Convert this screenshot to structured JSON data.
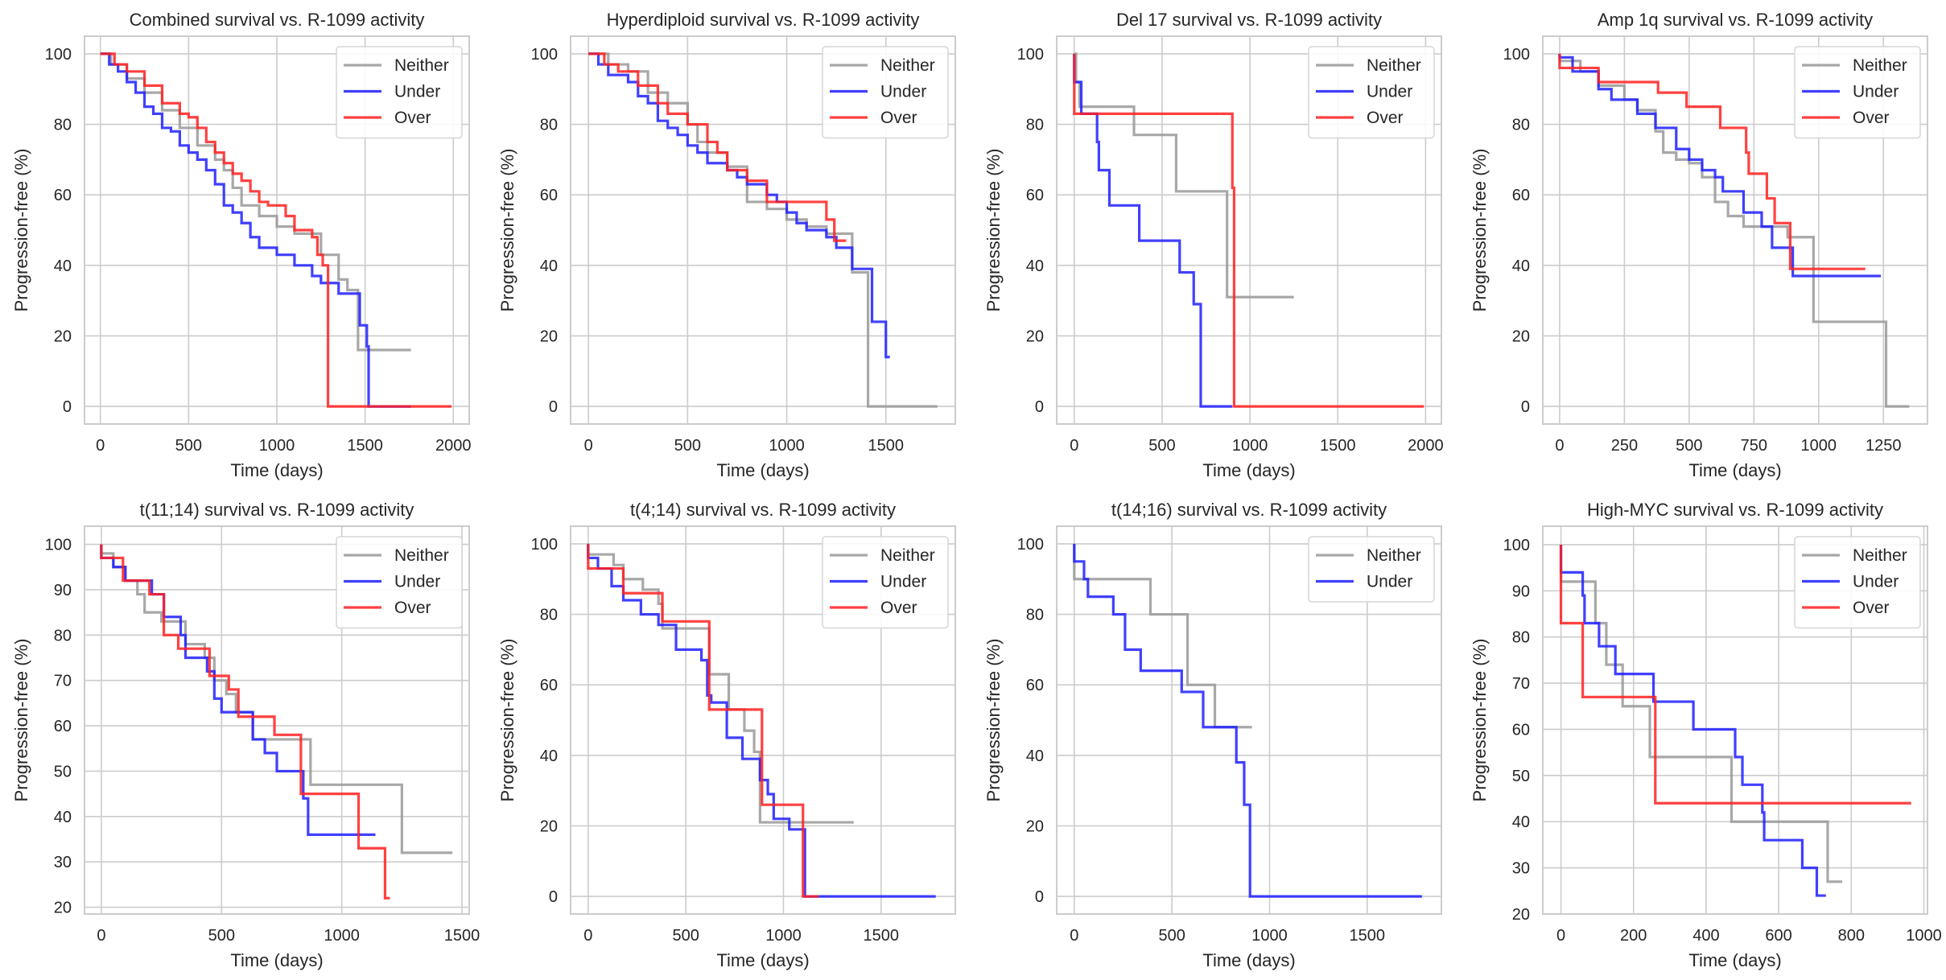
{
  "chart_data": [
    {
      "type": "line",
      "title": "Combined survival vs. R-1099 activity",
      "xlabel": "Time (days)",
      "ylabel": "Progression-free (%)",
      "xlim": [
        -90,
        2090
      ],
      "ylim": [
        -5,
        105
      ],
      "xticks": [
        0,
        500,
        1000,
        1500,
        2000
      ],
      "yticks": [
        0,
        20,
        40,
        60,
        80,
        100
      ],
      "grid": true,
      "legend_position": "top-right",
      "series": [
        {
          "name": "Neither",
          "color": "#999999",
          "x": [
            0,
            60,
            150,
            250,
            350,
            450,
            550,
            650,
            700,
            750,
            800,
            900,
            1000,
            1100,
            1200,
            1250,
            1300,
            1350,
            1400,
            1460,
            1760
          ],
          "y": [
            100,
            97,
            93,
            89,
            84,
            79,
            74,
            70,
            67,
            62,
            57,
            54,
            51,
            49,
            49,
            43,
            43,
            36,
            33,
            16,
            16
          ]
        },
        {
          "name": "Under",
          "color": "#1f1fff",
          "x": [
            0,
            50,
            100,
            150,
            200,
            250,
            300,
            350,
            400,
            450,
            500,
            550,
            600,
            650,
            700,
            750,
            800,
            850,
            900,
            1000,
            1100,
            1200,
            1250,
            1300,
            1350,
            1420,
            1470,
            1510,
            1520,
            1760
          ],
          "y": [
            100,
            97,
            95,
            92,
            89,
            85,
            83,
            79,
            78,
            74,
            72,
            70,
            67,
            63,
            57,
            55,
            52,
            48,
            45,
            43,
            40,
            37,
            35,
            35,
            32,
            32,
            23,
            17,
            0,
            0
          ]
        },
        {
          "name": "Over",
          "color": "#ff2020",
          "x": [
            0,
            80,
            150,
            250,
            350,
            450,
            500,
            550,
            600,
            650,
            700,
            750,
            800,
            850,
            900,
            950,
            1050,
            1100,
            1200,
            1230,
            1260,
            1290,
            1990
          ],
          "y": [
            100,
            97,
            95,
            91,
            86,
            83,
            82,
            79,
            75,
            72,
            69,
            66,
            64,
            61,
            58,
            57,
            54,
            50,
            48,
            43,
            40,
            0,
            0
          ]
        }
      ]
    },
    {
      "type": "line",
      "title": "Hyperdiploid survival vs. R-1099 activity",
      "xlabel": "Time (days)",
      "ylabel": "Progression-free (%)",
      "xlim": [
        -90,
        1850
      ],
      "ylim": [
        -5,
        105
      ],
      "xticks": [
        0,
        500,
        1000,
        1500
      ],
      "yticks": [
        0,
        20,
        40,
        60,
        80,
        100
      ],
      "grid": true,
      "legend_position": "top-right",
      "series": [
        {
          "name": "Neither",
          "color": "#999999",
          "x": [
            0,
            100,
            200,
            300,
            400,
            500,
            550,
            600,
            700,
            800,
            900,
            1000,
            1100,
            1200,
            1330,
            1400,
            1410,
            1760
          ],
          "y": [
            100,
            97,
            95,
            89,
            86,
            80,
            75,
            72,
            68,
            58,
            56,
            53,
            51,
            49,
            38,
            38,
            0,
            0
          ]
        },
        {
          "name": "Under",
          "color": "#1f1fff",
          "x": [
            0,
            50,
            100,
            200,
            250,
            300,
            350,
            400,
            450,
            500,
            550,
            600,
            700,
            750,
            800,
            900,
            950,
            1000,
            1050,
            1100,
            1200,
            1250,
            1330,
            1430,
            1500,
            1520
          ],
          "y": [
            100,
            97,
            94,
            92,
            88,
            86,
            81,
            79,
            77,
            74,
            72,
            69,
            67,
            65,
            63,
            60,
            58,
            55,
            52,
            50,
            48,
            45,
            39,
            24,
            14,
            14
          ]
        },
        {
          "name": "Over",
          "color": "#ff2020",
          "x": [
            0,
            80,
            150,
            250,
            350,
            400,
            500,
            600,
            650,
            700,
            800,
            900,
            1200,
            1240,
            1300
          ],
          "y": [
            100,
            97,
            95,
            91,
            86,
            83,
            80,
            75,
            72,
            67,
            64,
            58,
            53,
            47,
            47
          ]
        }
      ]
    },
    {
      "type": "line",
      "title": "Del 17 survival vs. R-1099 activity",
      "xlabel": "Time (days)",
      "ylabel": "Progression-free (%)",
      "xlim": [
        -100,
        2090
      ],
      "ylim": [
        -5,
        105
      ],
      "xticks": [
        0,
        500,
        1000,
        1500,
        2000
      ],
      "yticks": [
        0,
        20,
        40,
        60,
        80,
        100
      ],
      "grid": true,
      "legend_position": "top-right",
      "series": [
        {
          "name": "Neither",
          "color": "#999999",
          "x": [
            0,
            10,
            30,
            340,
            580,
            870,
            1250
          ],
          "y": [
            100,
            92,
            85,
            77,
            61,
            31,
            31
          ]
        },
        {
          "name": "Under",
          "color": "#1f1fff",
          "x": [
            0,
            40,
            130,
            140,
            200,
            370,
            600,
            680,
            720,
            900
          ],
          "y": [
            92,
            83,
            75,
            67,
            57,
            47,
            38,
            29,
            0,
            0
          ]
        },
        {
          "name": "Over",
          "color": "#ff2020",
          "x": [
            0,
            900,
            910,
            1990
          ],
          "y": [
            83,
            62,
            0,
            0
          ]
        }
      ]
    },
    {
      "type": "line",
      "title": "Amp 1q survival vs. R-1099 activity",
      "xlabel": "Time (days)",
      "ylabel": "Progression-free (%)",
      "xlim": [
        -65,
        1420
      ],
      "ylim": [
        -5,
        105
      ],
      "xticks": [
        0,
        250,
        500,
        750,
        1000,
        1250
      ],
      "yticks": [
        0,
        20,
        40,
        60,
        80,
        100
      ],
      "grid": true,
      "legend_position": "top-right",
      "series": [
        {
          "name": "Neither",
          "color": "#999999",
          "x": [
            0,
            80,
            150,
            250,
            300,
            370,
            400,
            450,
            500,
            550,
            600,
            650,
            710,
            880,
            980,
            1260,
            1350
          ],
          "y": [
            98,
            95,
            91,
            87,
            84,
            78,
            72,
            70,
            69,
            65,
            58,
            54,
            51,
            48,
            24,
            0,
            0
          ]
        },
        {
          "name": "Under",
          "color": "#1f1fff",
          "x": [
            0,
            50,
            150,
            200,
            300,
            370,
            450,
            500,
            550,
            600,
            630,
            710,
            780,
            820,
            900,
            1240
          ],
          "y": [
            99,
            95,
            90,
            87,
            83,
            79,
            73,
            70,
            67,
            65,
            61,
            55,
            51,
            45,
            37,
            37
          ]
        },
        {
          "name": "Over",
          "color": "#ff2020",
          "x": [
            0,
            150,
            380,
            490,
            620,
            720,
            730,
            800,
            830,
            890,
            1180
          ],
          "y": [
            96,
            92,
            89,
            85,
            79,
            72,
            66,
            59,
            52,
            39,
            39
          ]
        }
      ]
    },
    {
      "type": "line",
      "title": "t(11;14) survival vs. R-1099 activity",
      "xlabel": "Time (days)",
      "ylabel": "Progression-free (%)",
      "xlim": [
        -70,
        1530
      ],
      "ylim": [
        18.5,
        104
      ],
      "xticks": [
        0,
        500,
        1000,
        1500
      ],
      "yticks": [
        20,
        30,
        40,
        50,
        60,
        70,
        80,
        90,
        100
      ],
      "grid": true,
      "legend_position": "top-right",
      "series": [
        {
          "name": "Neither",
          "color": "#999999",
          "x": [
            0,
            50,
            100,
            150,
            180,
            250,
            350,
            430,
            470,
            520,
            560,
            630,
            870,
            1250,
            1460
          ],
          "y": [
            98,
            95,
            92,
            89,
            85,
            83,
            78,
            75,
            70,
            67,
            63,
            57,
            47,
            32,
            32
          ]
        },
        {
          "name": "Under",
          "color": "#1f1fff",
          "x": [
            0,
            50,
            100,
            210,
            260,
            330,
            350,
            440,
            470,
            500,
            630,
            680,
            730,
            840,
            860,
            1140
          ],
          "y": [
            97,
            95,
            92,
            89,
            84,
            80,
            75,
            72,
            66,
            63,
            57,
            54,
            50,
            44,
            36,
            36
          ]
        },
        {
          "name": "Over",
          "color": "#ff2020",
          "x": [
            0,
            90,
            200,
            260,
            320,
            450,
            530,
            570,
            720,
            830,
            1070,
            1180,
            1200
          ],
          "y": [
            97,
            92,
            89,
            80,
            77,
            71,
            68,
            62,
            58,
            45,
            33,
            22,
            22
          ]
        }
      ]
    },
    {
      "type": "line",
      "title": "t(4;14) survival vs. R-1099 activity",
      "xlabel": "Time (days)",
      "ylabel": "Progression-free (%)",
      "xlim": [
        -90,
        1880
      ],
      "ylim": [
        -5,
        105
      ],
      "xticks": [
        0,
        500,
        1000,
        1500
      ],
      "yticks": [
        0,
        20,
        40,
        60,
        80,
        100
      ],
      "grid": true,
      "legend_position": "top-right",
      "series": [
        {
          "name": "Neither",
          "color": "#999999",
          "x": [
            0,
            130,
            180,
            280,
            360,
            380,
            620,
            720,
            800,
            850,
            880,
            1360
          ],
          "y": [
            97,
            94,
            90,
            87,
            83,
            76,
            63,
            53,
            47,
            41,
            21,
            21
          ]
        },
        {
          "name": "Under",
          "color": "#1f1fff",
          "x": [
            0,
            50,
            120,
            180,
            270,
            360,
            450,
            580,
            610,
            630,
            710,
            790,
            880,
            920,
            950,
            1030,
            1110,
            1780
          ],
          "y": [
            96,
            93,
            88,
            84,
            80,
            77,
            70,
            67,
            57,
            55,
            45,
            39,
            33,
            29,
            22,
            19,
            0,
            0
          ]
        },
        {
          "name": "Over",
          "color": "#ff2020",
          "x": [
            0,
            180,
            380,
            620,
            890,
            1100,
            1180
          ],
          "y": [
            93,
            86,
            78,
            53,
            26,
            0,
            0
          ]
        }
      ]
    },
    {
      "type": "line",
      "title": "t(14;16) survival vs. R-1099 activity",
      "xlabel": "Time (days)",
      "ylabel": "Progression-free (%)",
      "xlim": [
        -90,
        1880
      ],
      "ylim": [
        -5,
        105
      ],
      "xticks": [
        0,
        500,
        1000,
        1500
      ],
      "yticks": [
        0,
        20,
        40,
        60,
        80,
        100
      ],
      "grid": true,
      "legend_position": "top-right",
      "series": [
        {
          "name": "Neither",
          "color": "#999999",
          "x": [
            0,
            390,
            580,
            720,
            910
          ],
          "y": [
            90,
            80,
            60,
            48,
            48
          ]
        },
        {
          "name": "Under",
          "color": "#1f1fff",
          "x": [
            0,
            50,
            70,
            200,
            260,
            340,
            550,
            660,
            830,
            870,
            900,
            1780
          ],
          "y": [
            95,
            90,
            85,
            80,
            70,
            64,
            58,
            48,
            38,
            26,
            0,
            0
          ]
        }
      ]
    },
    {
      "type": "line",
      "title": "High-MYC survival vs. R-1099 activity",
      "xlabel": "Time (days)",
      "ylabel": "Progression-free (%)",
      "xlim": [
        -50,
        1010
      ],
      "ylim": [
        20,
        104
      ],
      "xticks": [
        0,
        200,
        400,
        600,
        800,
        1000
      ],
      "yticks": [
        20,
        30,
        40,
        50,
        60,
        70,
        80,
        90,
        100
      ],
      "grid": true,
      "legend_position": "top-right",
      "series": [
        {
          "name": "Neither",
          "color": "#999999",
          "x": [
            0,
            95,
            125,
            170,
            245,
            470,
            735,
            775
          ],
          "y": [
            92,
            83,
            74,
            65,
            54,
            40,
            27,
            27
          ]
        },
        {
          "name": "Under",
          "color": "#1f1fff",
          "x": [
            0,
            60,
            65,
            105,
            150,
            255,
            365,
            480,
            500,
            555,
            560,
            665,
            705,
            730
          ],
          "y": [
            94,
            89,
            83,
            78,
            72,
            66,
            60,
            54,
            48,
            42,
            36,
            30,
            24,
            24
          ]
        },
        {
          "name": "Over",
          "color": "#ff2020",
          "x": [
            0,
            60,
            260,
            965
          ],
          "y": [
            83,
            67,
            44,
            44
          ]
        }
      ]
    }
  ]
}
